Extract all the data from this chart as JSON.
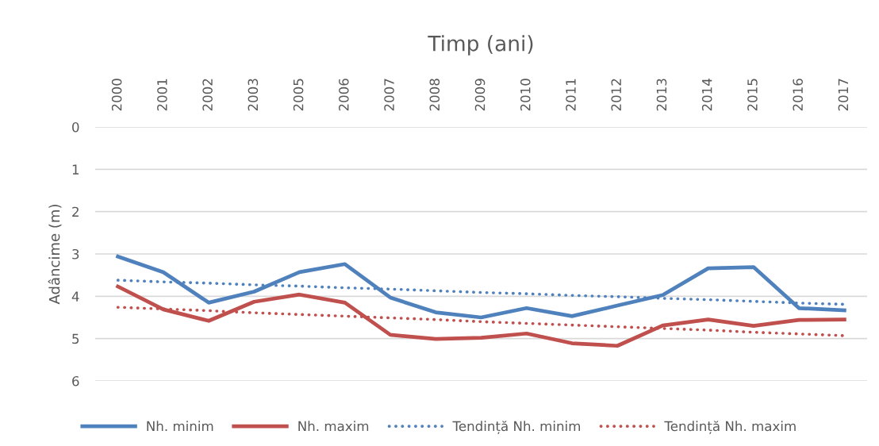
{
  "chart_data": {
    "type": "line",
    "title": "Timp (ani)",
    "ylabel": "Adâncime (m)",
    "categories": [
      "2000",
      "2001",
      "2002",
      "2003",
      "2005",
      "2006",
      "2007",
      "2008",
      "2009",
      "2010",
      "2011",
      "2012",
      "2013",
      "2014",
      "2015",
      "2016",
      "2017"
    ],
    "series": [
      {
        "name": "Nh. minim",
        "color": "#4f81bd",
        "line_style": "solid",
        "values": [
          3.06,
          3.43,
          4.15,
          3.89,
          3.43,
          3.24,
          4.03,
          4.38,
          4.5,
          4.28,
          4.47,
          4.22,
          3.97,
          3.34,
          3.31,
          4.28,
          4.33
        ]
      },
      {
        "name": "Nh. maxim",
        "color": "#c0504d",
        "line_style": "solid",
        "values": [
          3.77,
          4.31,
          4.58,
          4.13,
          3.96,
          4.15,
          4.91,
          5.01,
          4.98,
          4.88,
          5.11,
          5.17,
          4.69,
          4.55,
          4.7,
          4.56,
          4.55
        ]
      },
      {
        "name": "Tendință Nh. minim",
        "color": "#4f81bd",
        "line_style": "dotted",
        "values": [
          3.62,
          3.66,
          3.69,
          3.73,
          3.76,
          3.8,
          3.83,
          3.87,
          3.91,
          3.94,
          3.98,
          4.01,
          4.05,
          4.08,
          4.12,
          4.16,
          4.19
        ]
      },
      {
        "name": "Tendință Nh. maxim",
        "color": "#c0504d",
        "line_style": "dotted",
        "values": [
          4.26,
          4.3,
          4.34,
          4.39,
          4.43,
          4.47,
          4.51,
          4.55,
          4.6,
          4.64,
          4.68,
          4.72,
          4.76,
          4.8,
          4.85,
          4.89,
          4.93
        ]
      }
    ],
    "ylim": [
      6,
      0
    ],
    "yticks": [
      0,
      1,
      2,
      3,
      4,
      5,
      6
    ],
    "grid": "y",
    "legend": "bottom",
    "marker": "none"
  }
}
